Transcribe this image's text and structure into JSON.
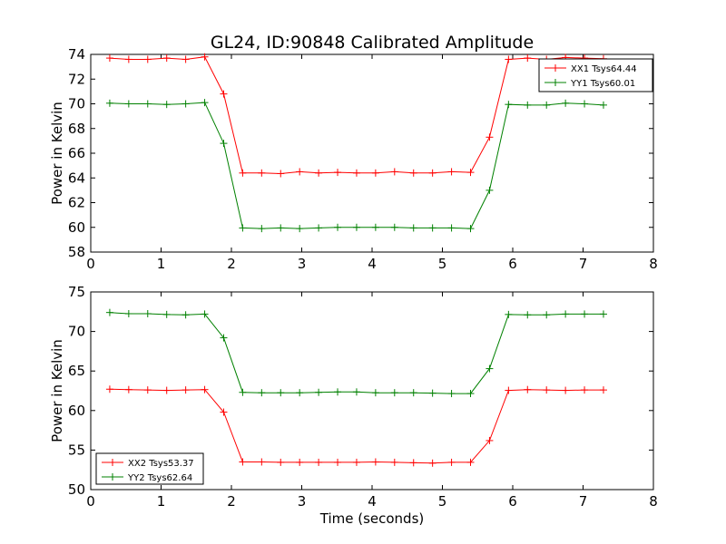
{
  "title": "GL24, ID:90848 Calibrated Amplitude",
  "chart_data": [
    {
      "type": "line",
      "ylabel": "Power in Kelvin",
      "xlabel": "",
      "xlim": [
        0,
        8
      ],
      "ylim": [
        58,
        74
      ],
      "xticks": [
        0,
        1,
        2,
        3,
        4,
        5,
        6,
        7,
        8
      ],
      "yticks": [
        58,
        60,
        62,
        64,
        66,
        68,
        70,
        72,
        74
      ],
      "legend_position": "top-right",
      "grid": false,
      "x": [
        0.27,
        0.54,
        0.81,
        1.08,
        1.35,
        1.62,
        1.89,
        2.16,
        2.43,
        2.7,
        2.97,
        3.24,
        3.51,
        3.78,
        4.05,
        4.32,
        4.59,
        4.86,
        5.13,
        5.4,
        5.67,
        5.94,
        6.21,
        6.48,
        6.75,
        7.02,
        7.29
      ],
      "series": [
        {
          "name": "XX1 Tsys64.44",
          "color": "#ff0000",
          "values": [
            73.7,
            73.6,
            73.6,
            73.7,
            73.6,
            73.8,
            70.8,
            64.4,
            64.4,
            64.35,
            64.5,
            64.4,
            64.45,
            64.4,
            64.4,
            64.5,
            64.4,
            64.4,
            64.5,
            64.45,
            67.3,
            73.6,
            73.7,
            73.6,
            73.75,
            73.7,
            73.65
          ]
        },
        {
          "name": "YY1 Tsys60.01",
          "color": "#008000",
          "values": [
            70.05,
            70.0,
            70.0,
            69.95,
            70.0,
            70.1,
            66.8,
            59.95,
            59.9,
            59.95,
            59.9,
            59.95,
            60.0,
            60.0,
            60.0,
            60.0,
            59.95,
            59.95,
            59.95,
            59.9,
            63.0,
            69.95,
            69.9,
            69.9,
            70.05,
            70.0,
            69.9
          ]
        }
      ]
    },
    {
      "type": "line",
      "ylabel": "Power in Kelvin",
      "xlabel": "Time (seconds)",
      "xlim": [
        0,
        8
      ],
      "ylim": [
        50,
        75
      ],
      "xticks": [
        0,
        1,
        2,
        3,
        4,
        5,
        6,
        7,
        8
      ],
      "yticks": [
        50,
        55,
        60,
        65,
        70,
        75
      ],
      "legend_position": "bottom-left",
      "grid": false,
      "x": [
        0.27,
        0.54,
        0.81,
        1.08,
        1.35,
        1.62,
        1.89,
        2.16,
        2.43,
        2.7,
        2.97,
        3.24,
        3.51,
        3.78,
        4.05,
        4.32,
        4.59,
        4.86,
        5.13,
        5.4,
        5.67,
        5.94,
        6.21,
        6.48,
        6.75,
        7.02,
        7.29
      ],
      "series": [
        {
          "name": "XX2 Tsys53.37",
          "color": "#ff0000",
          "values": [
            62.7,
            62.65,
            62.6,
            62.55,
            62.6,
            62.65,
            59.8,
            53.5,
            53.5,
            53.45,
            53.45,
            53.45,
            53.45,
            53.45,
            53.5,
            53.45,
            53.4,
            53.35,
            53.45,
            53.45,
            56.2,
            62.55,
            62.65,
            62.6,
            62.55,
            62.6,
            62.6
          ]
        },
        {
          "name": "YY2 Tsys62.64",
          "color": "#008000",
          "values": [
            72.4,
            72.25,
            72.25,
            72.15,
            72.1,
            72.2,
            69.2,
            62.3,
            62.25,
            62.25,
            62.25,
            62.3,
            62.35,
            62.35,
            62.25,
            62.25,
            62.25,
            62.2,
            62.15,
            62.15,
            65.3,
            72.15,
            72.1,
            72.1,
            72.2,
            72.2,
            72.2
          ]
        }
      ]
    }
  ]
}
